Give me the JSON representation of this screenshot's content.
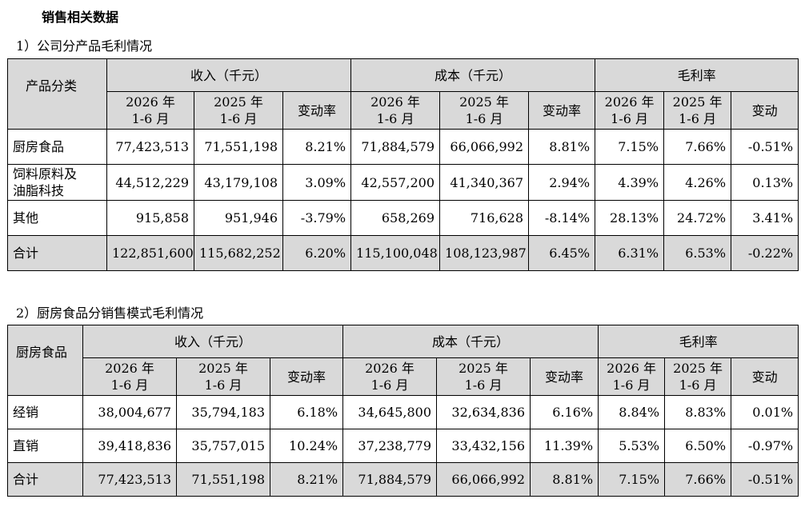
{
  "title": "销售相关数据",
  "section1": {
    "subtitle": "1）公司分产品毛利情况",
    "row_header": "产品分类",
    "groups": [
      "收入（千元）",
      "成本（千元）",
      "毛利率"
    ],
    "sub_headers": {
      "period_2026": [
        "2026 年",
        "1-6 月"
      ],
      "period_2025": [
        "2025 年",
        "1-6 月"
      ],
      "change_rate": "变动率",
      "change": "变动"
    },
    "rows": [
      {
        "label": [
          "厨房食品"
        ],
        "values": [
          "77,423,513",
          "71,551,198",
          "8.21%",
          "71,884,579",
          "66,066,992",
          "8.81%",
          "7.15%",
          "7.66%",
          "-0.51%"
        ]
      },
      {
        "label": [
          "饲料原料及",
          "油脂科技"
        ],
        "values": [
          "44,512,229",
          "43,179,108",
          "3.09%",
          "42,557,200",
          "41,340,367",
          "2.94%",
          "4.39%",
          "4.26%",
          "0.13%"
        ]
      },
      {
        "label": [
          "其他"
        ],
        "values": [
          "915,858",
          "951,946",
          "-3.79%",
          "658,269",
          "716,628",
          "-8.14%",
          "28.13%",
          "24.72%",
          "3.41%"
        ]
      },
      {
        "label": [
          "合计"
        ],
        "values": [
          "122,851,600",
          "115,682,252",
          "6.20%",
          "115,100,048",
          "108,123,987",
          "6.45%",
          "6.31%",
          "6.53%",
          "-0.22%"
        ]
      }
    ]
  },
  "section2": {
    "subtitle": "2）厨房食品分销售模式毛利情况",
    "row_header": "厨房食品",
    "groups": [
      "收入（千元）",
      "成本（千元）",
      "毛利率"
    ],
    "rows": [
      {
        "label": [
          "经销"
        ],
        "values": [
          "38,004,677",
          "35,794,183",
          "6.18%",
          "34,645,800",
          "32,634,836",
          "6.16%",
          "8.84%",
          "8.83%",
          "0.01%"
        ]
      },
      {
        "label": [
          "直销"
        ],
        "values": [
          "39,418,836",
          "35,757,015",
          "10.24%",
          "37,238,779",
          "33,432,156",
          "11.39%",
          "5.53%",
          "6.50%",
          "-0.97%"
        ]
      },
      {
        "label": [
          "合计"
        ],
        "values": [
          "77,423,513",
          "71,551,198",
          "8.21%",
          "71,884,579",
          "66,066,992",
          "8.81%",
          "7.15%",
          "7.66%",
          "-0.51%"
        ]
      }
    ]
  }
}
